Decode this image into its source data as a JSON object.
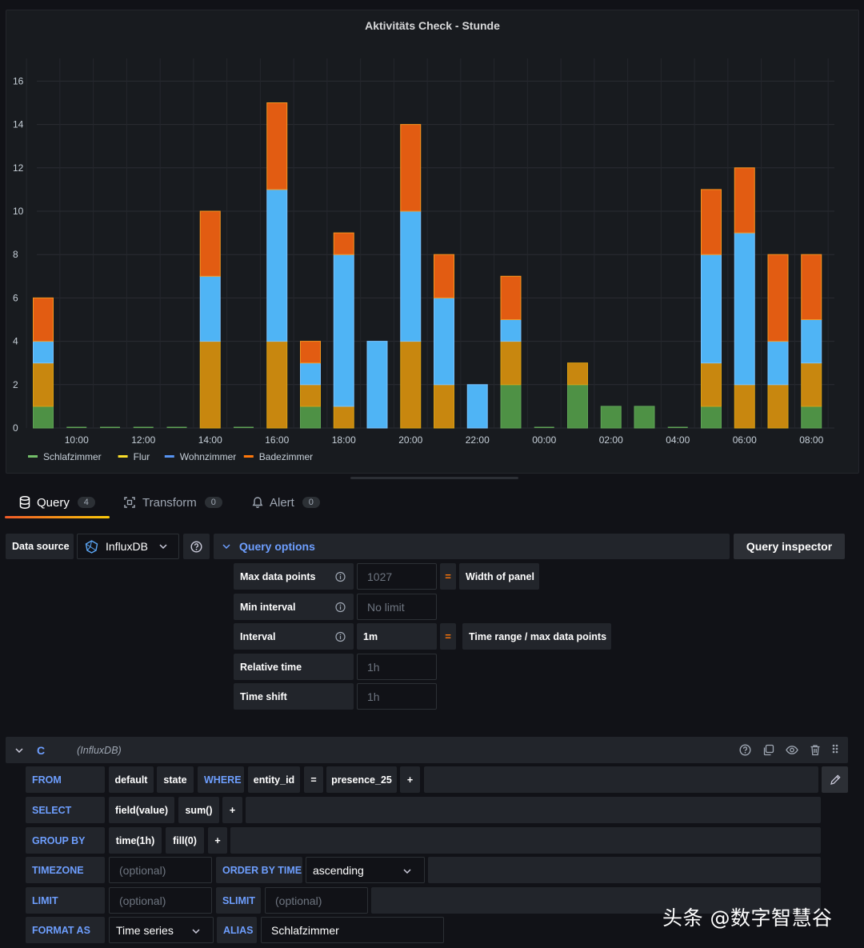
{
  "panel": {
    "title": "Aktivitäts Check - Stunde"
  },
  "chart_data": {
    "type": "bar",
    "stacked": true,
    "title": "Aktivitäts Check - Stunde",
    "ylim": [
      0,
      16.5
    ],
    "y_ticks": [
      "0",
      "2",
      "4",
      "6",
      "8",
      "10",
      "12",
      "14",
      "16"
    ],
    "x_ticks": [
      "10:00",
      "12:00",
      "14:00",
      "16:00",
      "18:00",
      "20:00",
      "22:00",
      "00:00",
      "02:00",
      "04:00",
      "06:00",
      "08:00"
    ],
    "categories": [
      "09:00",
      "10:00",
      "11:00",
      "12:00",
      "13:00",
      "14:00",
      "15:00",
      "16:00",
      "17:00",
      "18:00",
      "19:00",
      "20:00",
      "21:00",
      "22:00",
      "23:00",
      "00:00",
      "01:00",
      "02:00",
      "03:00",
      "04:00",
      "05:00",
      "06:00",
      "07:00",
      "08:00"
    ],
    "series": [
      {
        "name": "Schlafzimmer",
        "color": "#73bf69",
        "values": [
          1,
          0,
          0,
          0,
          0,
          0,
          0,
          0,
          1,
          0,
          0,
          0,
          0,
          0,
          2,
          0,
          2,
          1,
          1,
          0,
          1,
          0,
          0,
          1
        ]
      },
      {
        "name": "Flur",
        "color": "#fade2a",
        "values": [
          2,
          0,
          0,
          0,
          0,
          4,
          0,
          4,
          1,
          1,
          0,
          4,
          2,
          0,
          2,
          0,
          1,
          0,
          0,
          0,
          2,
          2,
          2,
          2
        ]
      },
      {
        "name": "Wohnzimmer",
        "color": "#5794f2",
        "values": [
          1,
          0,
          0,
          0,
          0,
          3,
          0,
          7,
          1,
          7,
          4,
          6,
          4,
          2,
          1,
          0,
          0,
          0,
          0,
          0,
          5,
          7,
          2,
          2
        ]
      },
      {
        "name": "Badezimmer",
        "color": "#ff780a",
        "values": [
          2,
          0,
          0,
          0,
          0,
          3,
          0,
          4,
          1,
          1,
          0,
          4,
          2,
          0,
          2,
          0,
          0,
          0,
          0,
          0,
          3,
          3,
          4,
          3
        ]
      }
    ],
    "legend_position": "bottom-left",
    "grid": true
  },
  "tabs": [
    {
      "label": "Query",
      "count": "4",
      "icon": "database-icon"
    },
    {
      "label": "Transform",
      "count": "0",
      "icon": "transform-icon"
    },
    {
      "label": "Alert",
      "count": "0",
      "icon": "bell-icon"
    }
  ],
  "datasource": {
    "label": "Data source",
    "value": "InfluxDB"
  },
  "query_options": {
    "title": "Query options",
    "inspector": "Query inspector",
    "max_data_points": {
      "label": "Max data points",
      "value": "1027",
      "eq": "=",
      "hint": "Width of panel"
    },
    "min_interval": {
      "label": "Min interval",
      "placeholder": "No limit"
    },
    "interval": {
      "label": "Interval",
      "value": "1m",
      "eq": "=",
      "hint": "Time range / max data points"
    },
    "relative_time": {
      "label": "Relative time",
      "placeholder": "1h"
    },
    "time_shift": {
      "label": "Time shift",
      "placeholder": "1h"
    }
  },
  "query": {
    "ref": "C",
    "source": "(InfluxDB)",
    "from": {
      "kw": "FROM",
      "policy": "default",
      "measurement": "state",
      "where_kw": "WHERE",
      "key": "entity_id",
      "op": "=",
      "value": "presence_25",
      "add": "+"
    },
    "select": {
      "kw": "SELECT",
      "field": "field(value)",
      "fn": "sum()",
      "add": "+"
    },
    "group_by": {
      "kw": "GROUP BY",
      "time": "time(1h)",
      "fill": "fill(0)",
      "add": "+"
    },
    "timezone": {
      "kw": "TIMEZONE",
      "placeholder": "(optional)",
      "order_kw": "ORDER BY TIME",
      "order_value": "ascending"
    },
    "limit": {
      "kw": "LIMIT",
      "placeholder": "(optional)",
      "slimit_kw": "SLIMIT",
      "slimit_placeholder": "(optional)"
    },
    "format": {
      "kw": "FORMAT AS",
      "value": "Time series",
      "alias_kw": "ALIAS",
      "alias_value": "Schlafzimmer"
    }
  },
  "watermark": "头条 @数字智慧谷"
}
